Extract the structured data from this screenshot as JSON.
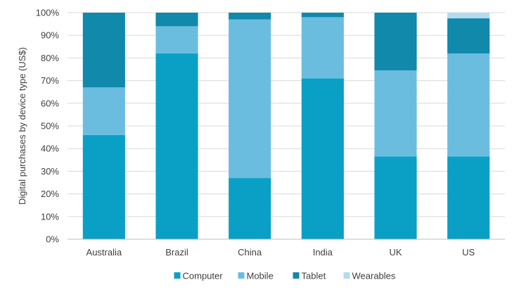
{
  "chart_data": {
    "type": "bar",
    "stacked": true,
    "categories": [
      "Australia",
      "Brazil",
      "China",
      "India",
      "UK",
      "US"
    ],
    "series": [
      {
        "name": "Computer",
        "color": "#0aa0c6",
        "values": [
          46,
          82,
          27,
          71,
          36.5,
          36.5
        ]
      },
      {
        "name": "Mobile",
        "color": "#6bbde0",
        "values": [
          21,
          12,
          70,
          27,
          38,
          45.5
        ]
      },
      {
        "name": "Tablet",
        "color": "#1089ab",
        "values": [
          33,
          6,
          3,
          2,
          25.5,
          15.5
        ]
      },
      {
        "name": "Wearables",
        "color": "#b4dbef",
        "values": [
          0,
          0,
          0,
          0,
          0,
          2.5
        ]
      }
    ],
    "ylabel": "Digital purchases by device type (US$)",
    "xlabel": "",
    "ylim": [
      0,
      100
    ],
    "yticks": [
      "0%",
      "10%",
      "20%",
      "30%",
      "40%",
      "50%",
      "60%",
      "70%",
      "80%",
      "90%",
      "100%"
    ],
    "grid": true,
    "legend": "bottom"
  }
}
